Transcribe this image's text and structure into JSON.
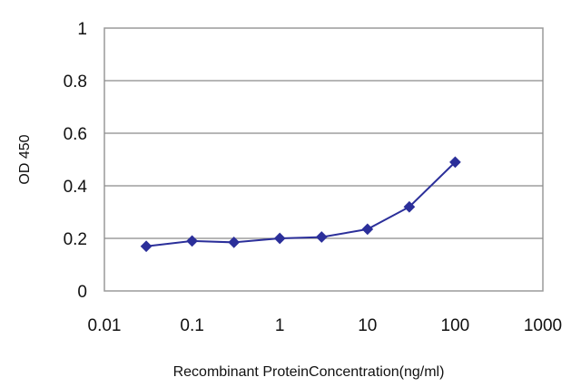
{
  "chart_data": {
    "type": "line",
    "xlabel": "Recombinant ProteinConcentration(ng/ml)",
    "ylabel": "OD 450",
    "x_scale": "log",
    "xlim": [
      0.01,
      1000
    ],
    "ylim": [
      0,
      1
    ],
    "x_ticks": [
      "0.01",
      "0.1",
      "1",
      "10",
      "100",
      "1000"
    ],
    "y_ticks": [
      "0",
      "0.2",
      "0.4",
      "0.6",
      "0.8",
      "1"
    ],
    "grid": "horizontal",
    "series": [
      {
        "x": [
          0.03,
          0.1,
          0.3,
          1,
          3,
          10,
          30,
          100
        ],
        "y": [
          0.17,
          0.19,
          0.185,
          0.2,
          0.205,
          0.235,
          0.32,
          0.49
        ],
        "color": "#2b2f9a"
      }
    ]
  }
}
